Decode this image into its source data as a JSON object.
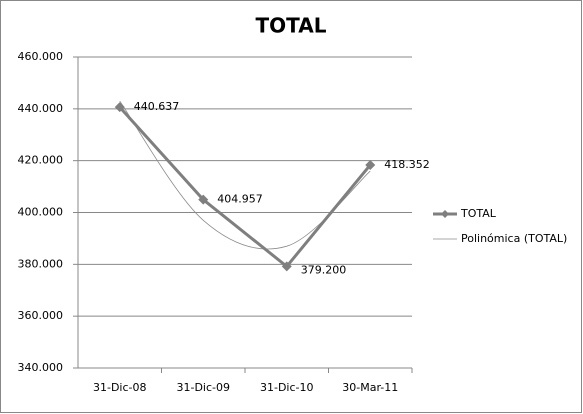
{
  "chart_data": {
    "type": "line",
    "title": "TOTAL",
    "categories": [
      "31-Dic-08",
      "31-Dic-09",
      "31-Dic-10",
      "30-Mar-11"
    ],
    "series": [
      {
        "name": "TOTAL",
        "color": "#7f7f7f",
        "values": [
          440637,
          404957,
          379200,
          418352
        ],
        "value_labels": [
          "440.637",
          "404.957",
          "379.200",
          "418.352"
        ],
        "marker": "diamond"
      },
      {
        "name": "Polinómica (TOTAL)",
        "color": "#8c8c8c",
        "values": [
          443000,
          397000,
          387000,
          416000
        ],
        "smooth": true
      }
    ],
    "ylim": [
      340000,
      460000
    ],
    "yticks": [
      {
        "value": 340000,
        "label": "340.000"
      },
      {
        "value": 360000,
        "label": "360.000"
      },
      {
        "value": 380000,
        "label": "380.000"
      },
      {
        "value": 400000,
        "label": "400.000"
      },
      {
        "value": 420000,
        "label": "420.000"
      },
      {
        "value": 440000,
        "label": "440.000"
      },
      {
        "value": 460000,
        "label": "460.000"
      }
    ],
    "grid": true,
    "legend": "right"
  }
}
